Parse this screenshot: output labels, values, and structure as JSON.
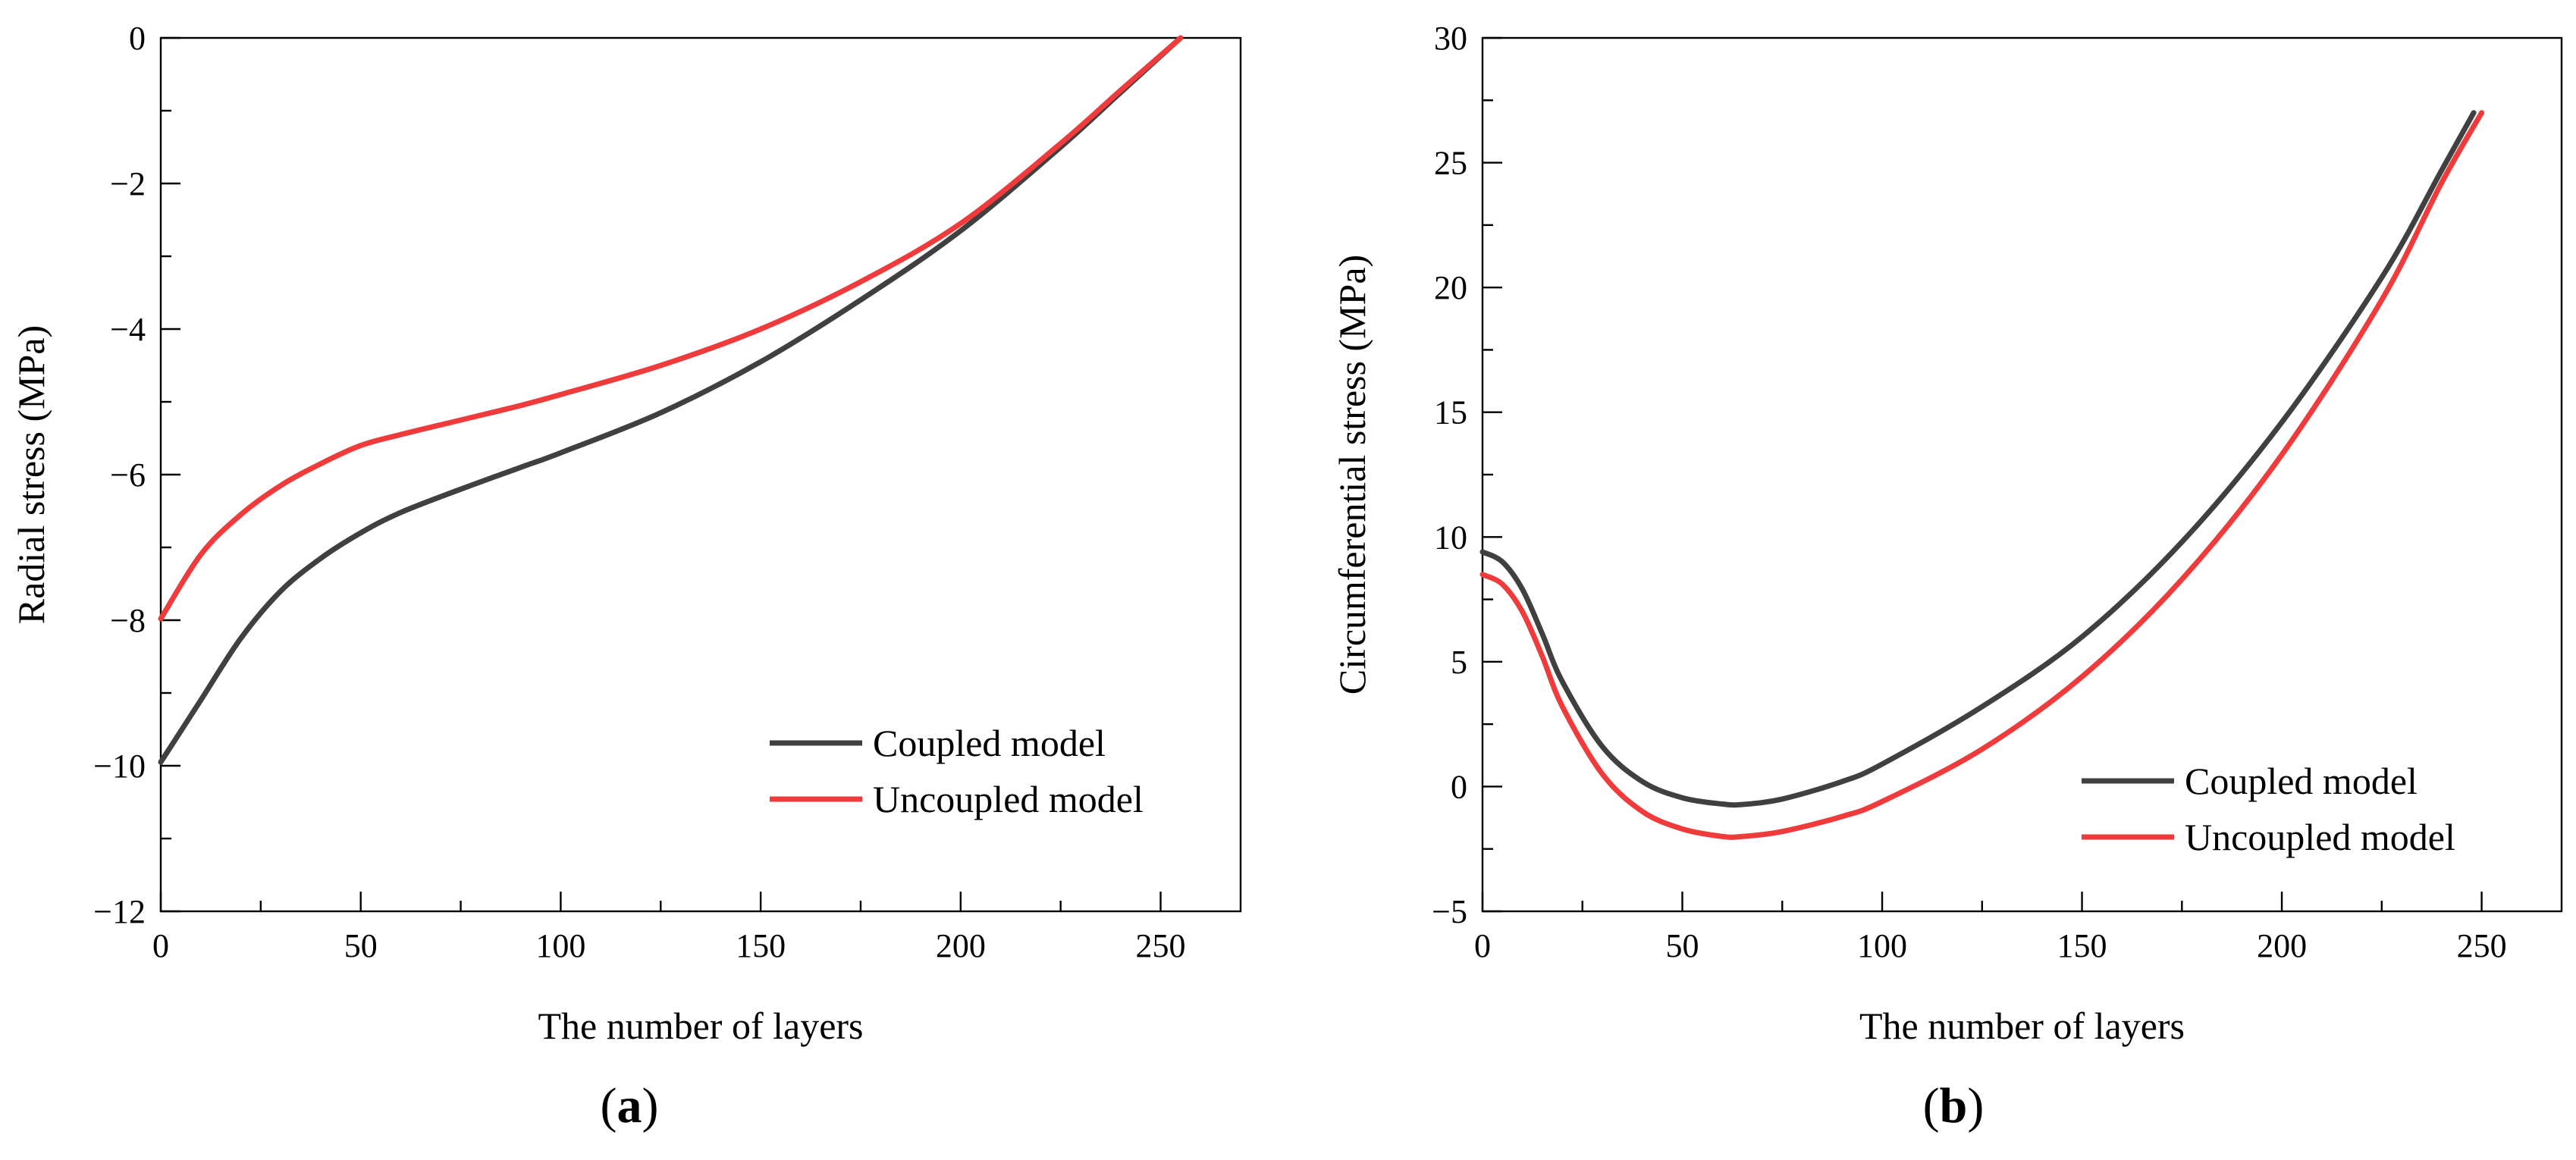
{
  "chart_data": [
    {
      "id": "a",
      "type": "line",
      "panel_label": "a",
      "xlabel": "The number of layers",
      "ylabel": "Radial stress (MPa)",
      "xlim": [
        0,
        270
      ],
      "ylim": [
        -12,
        0
      ],
      "xticks": [
        0,
        50,
        100,
        150,
        200,
        250
      ],
      "yticks": [
        -12,
        -10,
        -8,
        -6,
        -4,
        -2,
        0
      ],
      "xtick_labels": [
        "0",
        "50",
        "100",
        "150",
        "200",
        "250"
      ],
      "ytick_labels": [
        "−12",
        "−10",
        "−8",
        "−6",
        "−4",
        "−2",
        "0"
      ],
      "legend_position": "lower-right",
      "series": [
        {
          "name": "Coupled model",
          "color": "#404040",
          "points": [
            [
              0,
              -9.95
            ],
            [
              10,
              -9.1
            ],
            [
              20,
              -8.25
            ],
            [
              30,
              -7.6
            ],
            [
              40,
              -7.15
            ],
            [
              50,
              -6.8
            ],
            [
              60,
              -6.52
            ],
            [
              75,
              -6.2
            ],
            [
              90,
              -5.9
            ],
            [
              100,
              -5.7
            ],
            [
              125,
              -5.15
            ],
            [
              150,
              -4.45
            ],
            [
              175,
              -3.6
            ],
            [
              200,
              -2.65
            ],
            [
              225,
              -1.5
            ],
            [
              240,
              -0.75
            ],
            [
              255,
              0.0
            ]
          ]
        },
        {
          "name": "Uncoupled model",
          "color": "#ef3b3b",
          "points": [
            [
              0,
              -7.98
            ],
            [
              10,
              -7.1
            ],
            [
              20,
              -6.55
            ],
            [
              30,
              -6.15
            ],
            [
              40,
              -5.85
            ],
            [
              50,
              -5.6
            ],
            [
              60,
              -5.45
            ],
            [
              75,
              -5.25
            ],
            [
              90,
              -5.05
            ],
            [
              100,
              -4.9
            ],
            [
              125,
              -4.5
            ],
            [
              150,
              -4.0
            ],
            [
              175,
              -3.35
            ],
            [
              200,
              -2.55
            ],
            [
              225,
              -1.45
            ],
            [
              240,
              -0.72
            ],
            [
              255,
              0.0
            ]
          ]
        }
      ]
    },
    {
      "id": "b",
      "type": "line",
      "panel_label": "b",
      "xlabel": "The number of layers",
      "ylabel": "Circumferential stress (MPa)",
      "xlim": [
        0,
        270
      ],
      "ylim": [
        -5,
        30
      ],
      "xticks": [
        0,
        50,
        100,
        150,
        200,
        250
      ],
      "yticks": [
        -5,
        0,
        5,
        10,
        15,
        20,
        25,
        30
      ],
      "xtick_labels": [
        "0",
        "50",
        "100",
        "150",
        "200",
        "250"
      ],
      "ytick_labels": [
        "−5",
        "0",
        "5",
        "10",
        "15",
        "20",
        "25",
        "30"
      ],
      "legend_position": "lower-right",
      "series": [
        {
          "name": "Coupled model",
          "color": "#404040",
          "points": [
            [
              0,
              9.4
            ],
            [
              5,
              9.0
            ],
            [
              10,
              7.9
            ],
            [
              15,
              6.1
            ],
            [
              20,
              4.2
            ],
            [
              30,
              1.6
            ],
            [
              40,
              0.2
            ],
            [
              50,
              -0.45
            ],
            [
              60,
              -0.7
            ],
            [
              65,
              -0.72
            ],
            [
              75,
              -0.5
            ],
            [
              90,
              0.2
            ],
            [
              100,
              0.9
            ],
            [
              125,
              3.2
            ],
            [
              150,
              6.0
            ],
            [
              175,
              9.8
            ],
            [
              200,
              14.6
            ],
            [
              225,
              20.4
            ],
            [
              240,
              24.7
            ],
            [
              248,
              27.0
            ]
          ]
        },
        {
          "name": "Uncoupled model",
          "color": "#ef3b3b",
          "points": [
            [
              0,
              8.5
            ],
            [
              5,
              8.1
            ],
            [
              10,
              7.0
            ],
            [
              15,
              5.2
            ],
            [
              20,
              3.2
            ],
            [
              30,
              0.5
            ],
            [
              40,
              -1.0
            ],
            [
              50,
              -1.7
            ],
            [
              60,
              -2.0
            ],
            [
              65,
              -2.0
            ],
            [
              75,
              -1.8
            ],
            [
              90,
              -1.2
            ],
            [
              100,
              -0.6
            ],
            [
              125,
              1.5
            ],
            [
              150,
              4.4
            ],
            [
              175,
              8.3
            ],
            [
              200,
              13.3
            ],
            [
              225,
              19.5
            ],
            [
              240,
              24.2
            ],
            [
              250,
              27.0
            ]
          ]
        }
      ]
    }
  ]
}
